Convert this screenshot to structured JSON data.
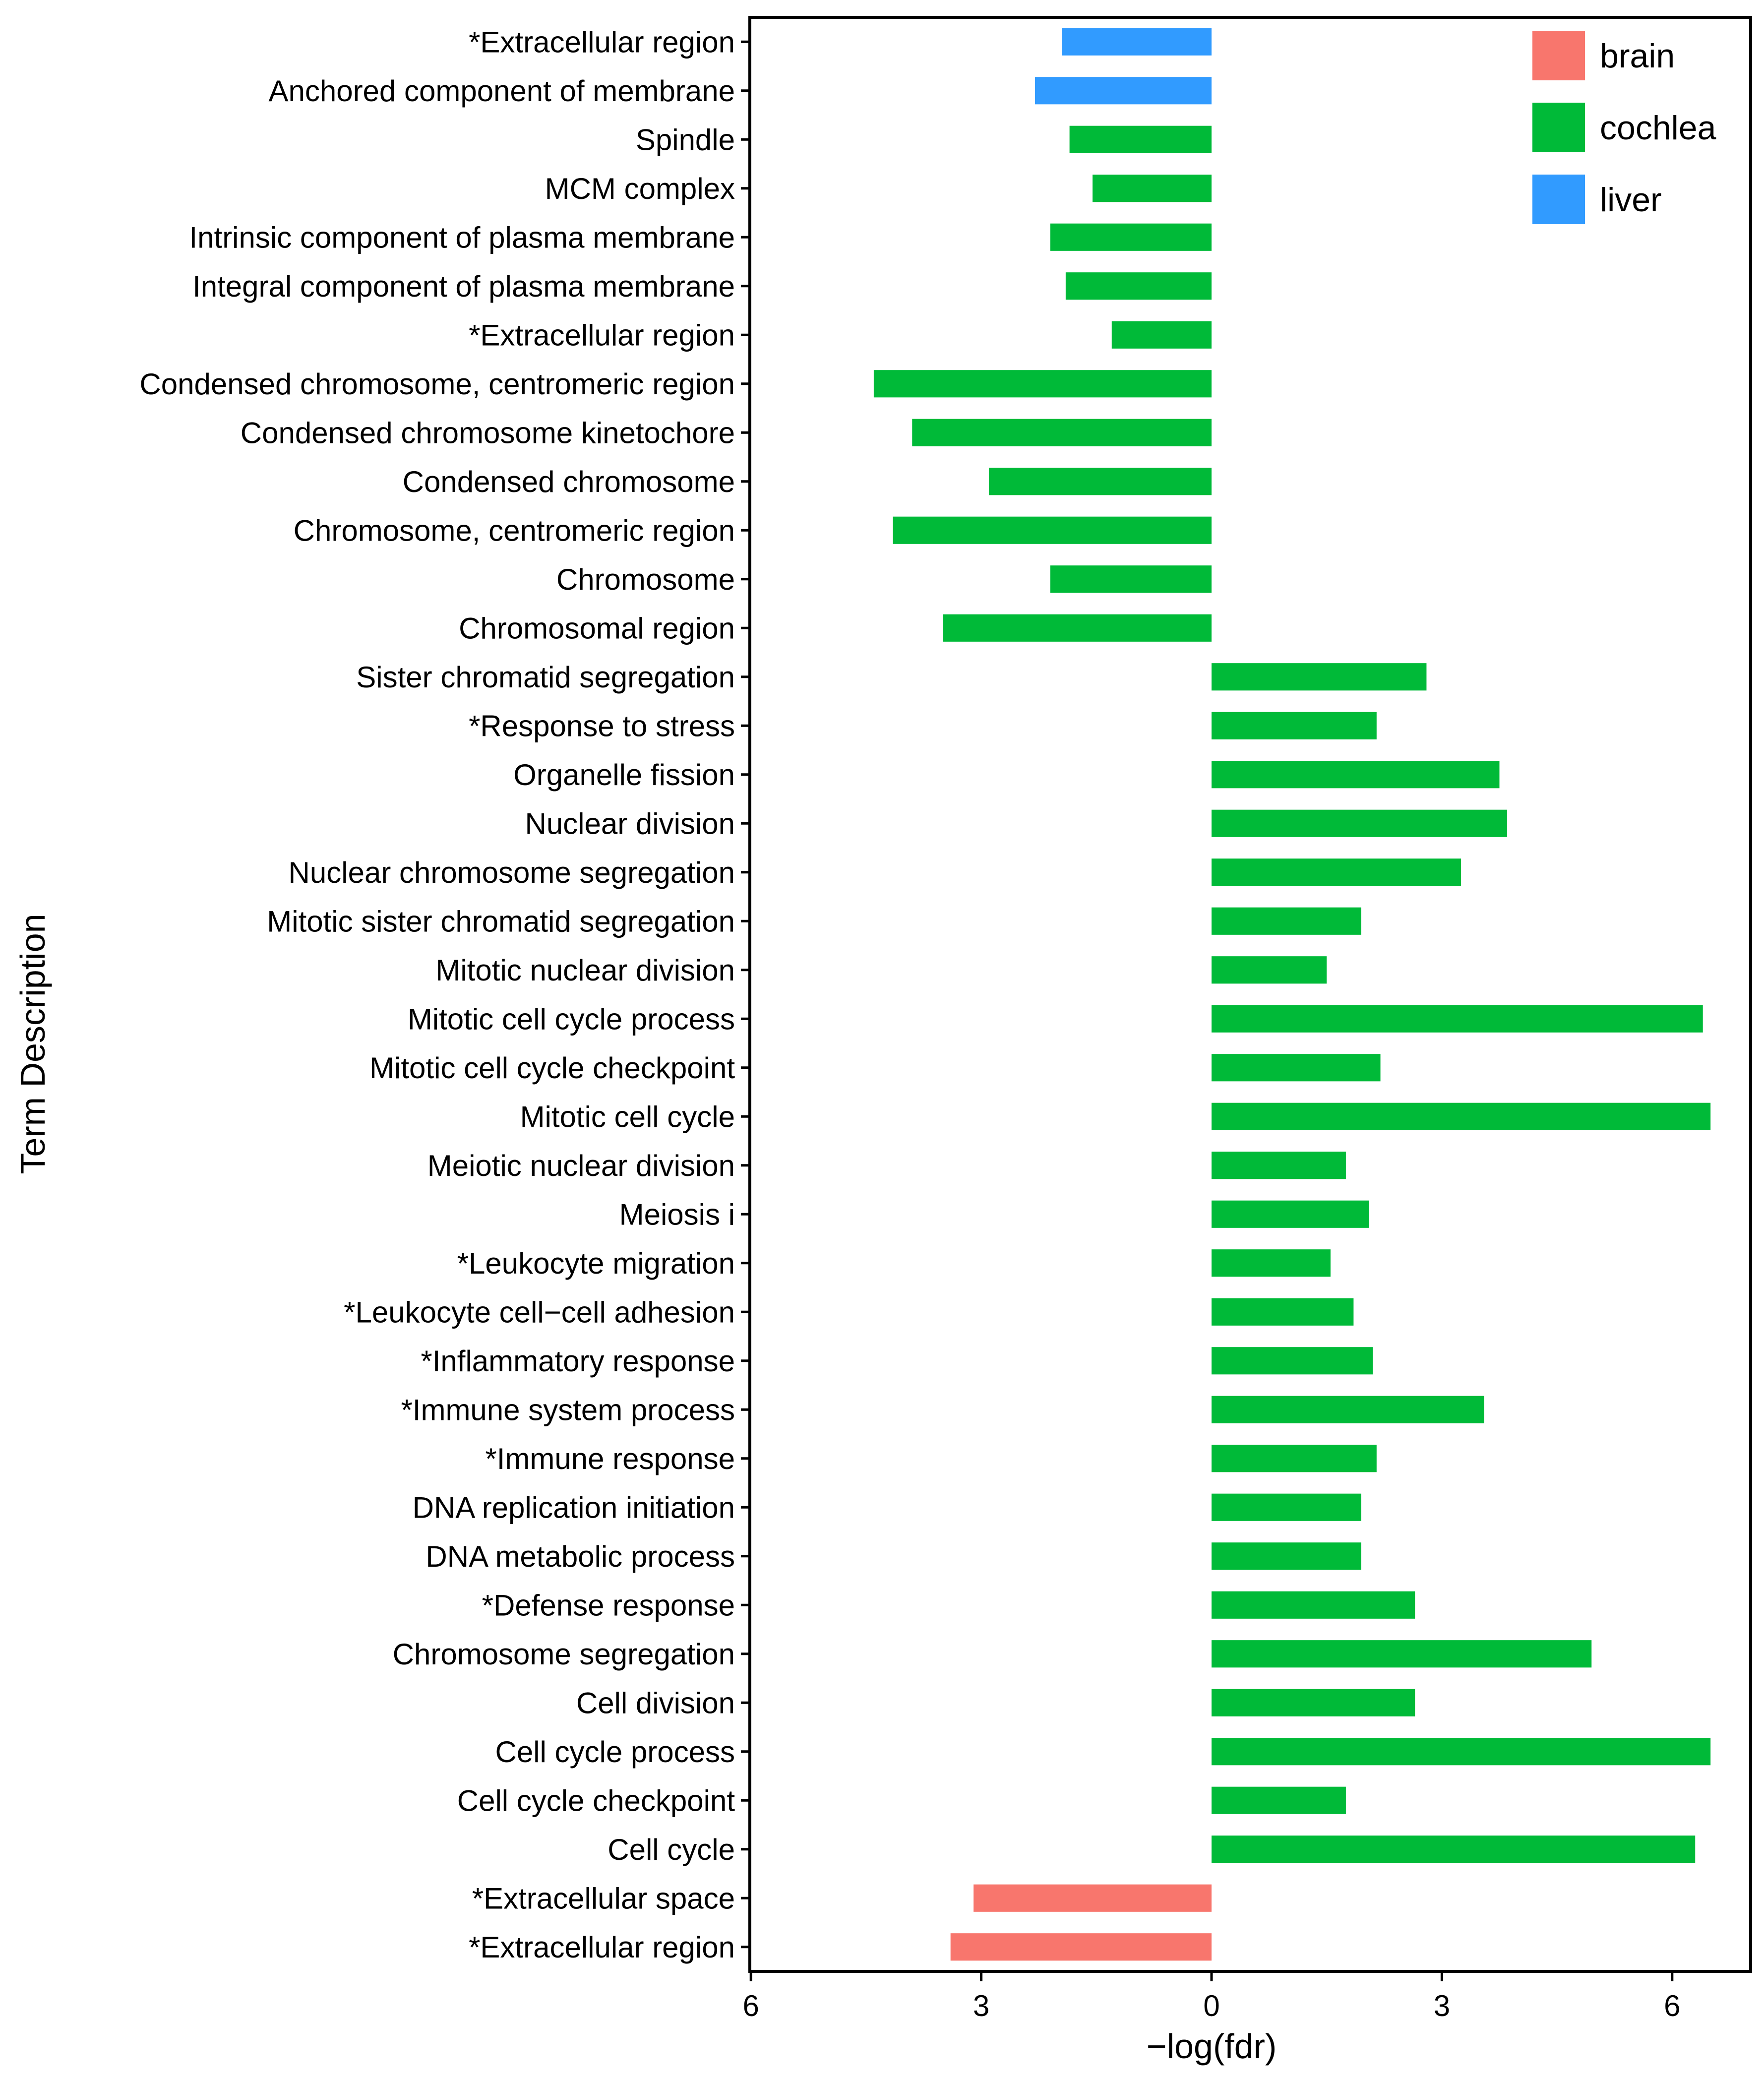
{
  "chart_data": {
    "type": "bar",
    "orientation": "horizontal",
    "title": "",
    "xlabel": "−log(fdr)",
    "ylabel": "Term Description",
    "xlim": [
      -6,
      6.5
    ],
    "xticks": [
      -6,
      -3,
      0,
      3,
      6
    ],
    "xtick_labels": [
      "6",
      "3",
      "0",
      "3",
      "6"
    ],
    "grid": false,
    "legend_position": "top-right",
    "legend": [
      {
        "name": "brain",
        "color": "#F8766D"
      },
      {
        "name": "cochlea",
        "color": "#00BA38"
      },
      {
        "name": "liver",
        "color": "#319BFF"
      }
    ],
    "bars": [
      {
        "label": "*Extracellular region",
        "value": -1.95,
        "group": "liver"
      },
      {
        "label": "Anchored component of membrane",
        "value": -2.3,
        "group": "liver"
      },
      {
        "label": "Spindle",
        "value": -1.85,
        "group": "cochlea"
      },
      {
        "label": "MCM complex",
        "value": -1.55,
        "group": "cochlea"
      },
      {
        "label": "Intrinsic component of plasma membrane",
        "value": -2.1,
        "group": "cochlea"
      },
      {
        "label": "Integral component of plasma membrane",
        "value": -1.9,
        "group": "cochlea"
      },
      {
        "label": "*Extracellular region",
        "value": -1.3,
        "group": "cochlea"
      },
      {
        "label": "Condensed chromosome, centromeric region",
        "value": -4.4,
        "group": "cochlea"
      },
      {
        "label": "Condensed chromosome kinetochore",
        "value": -3.9,
        "group": "cochlea"
      },
      {
        "label": "Condensed chromosome",
        "value": -2.9,
        "group": "cochlea"
      },
      {
        "label": "Chromosome, centromeric region",
        "value": -4.15,
        "group": "cochlea"
      },
      {
        "label": "Chromosome",
        "value": -2.1,
        "group": "cochlea"
      },
      {
        "label": "Chromosomal region",
        "value": -3.5,
        "group": "cochlea"
      },
      {
        "label": "Sister chromatid segregation",
        "value": 2.8,
        "group": "cochlea"
      },
      {
        "label": "*Response to stress",
        "value": 2.15,
        "group": "cochlea"
      },
      {
        "label": "Organelle fission",
        "value": 3.75,
        "group": "cochlea"
      },
      {
        "label": "Nuclear division",
        "value": 3.85,
        "group": "cochlea"
      },
      {
        "label": "Nuclear chromosome segregation",
        "value": 3.25,
        "group": "cochlea"
      },
      {
        "label": "Mitotic sister chromatid segregation",
        "value": 1.95,
        "group": "cochlea"
      },
      {
        "label": "Mitotic nuclear division",
        "value": 1.5,
        "group": "cochlea"
      },
      {
        "label": "Mitotic cell cycle process",
        "value": 6.4,
        "group": "cochlea"
      },
      {
        "label": "Mitotic cell cycle checkpoint",
        "value": 2.2,
        "group": "cochlea"
      },
      {
        "label": "Mitotic cell cycle",
        "value": 6.5,
        "group": "cochlea"
      },
      {
        "label": "Meiotic nuclear division",
        "value": 1.75,
        "group": "cochlea"
      },
      {
        "label": "Meiosis i",
        "value": 2.05,
        "group": "cochlea"
      },
      {
        "label": "*Leukocyte migration",
        "value": 1.55,
        "group": "cochlea"
      },
      {
        "label": "*Leukocyte cell−cell adhesion",
        "value": 1.85,
        "group": "cochlea"
      },
      {
        "label": "*Inflammatory response",
        "value": 2.1,
        "group": "cochlea"
      },
      {
        "label": "*Immune system process",
        "value": 3.55,
        "group": "cochlea"
      },
      {
        "label": "*Immune response",
        "value": 2.15,
        "group": "cochlea"
      },
      {
        "label": "DNA replication initiation",
        "value": 1.95,
        "group": "cochlea"
      },
      {
        "label": "DNA metabolic process",
        "value": 1.95,
        "group": "cochlea"
      },
      {
        "label": "*Defense response",
        "value": 2.65,
        "group": "cochlea"
      },
      {
        "label": "Chromosome segregation",
        "value": 4.95,
        "group": "cochlea"
      },
      {
        "label": "Cell division",
        "value": 2.65,
        "group": "cochlea"
      },
      {
        "label": "Cell cycle process",
        "value": 6.5,
        "group": "cochlea"
      },
      {
        "label": "Cell cycle checkpoint",
        "value": 1.75,
        "group": "cochlea"
      },
      {
        "label": "Cell cycle",
        "value": 6.3,
        "group": "cochlea"
      },
      {
        "label": "*Extracellular space",
        "value": -3.1,
        "group": "brain"
      },
      {
        "label": "*Extracellular region",
        "value": -3.4,
        "group": "brain"
      }
    ]
  }
}
